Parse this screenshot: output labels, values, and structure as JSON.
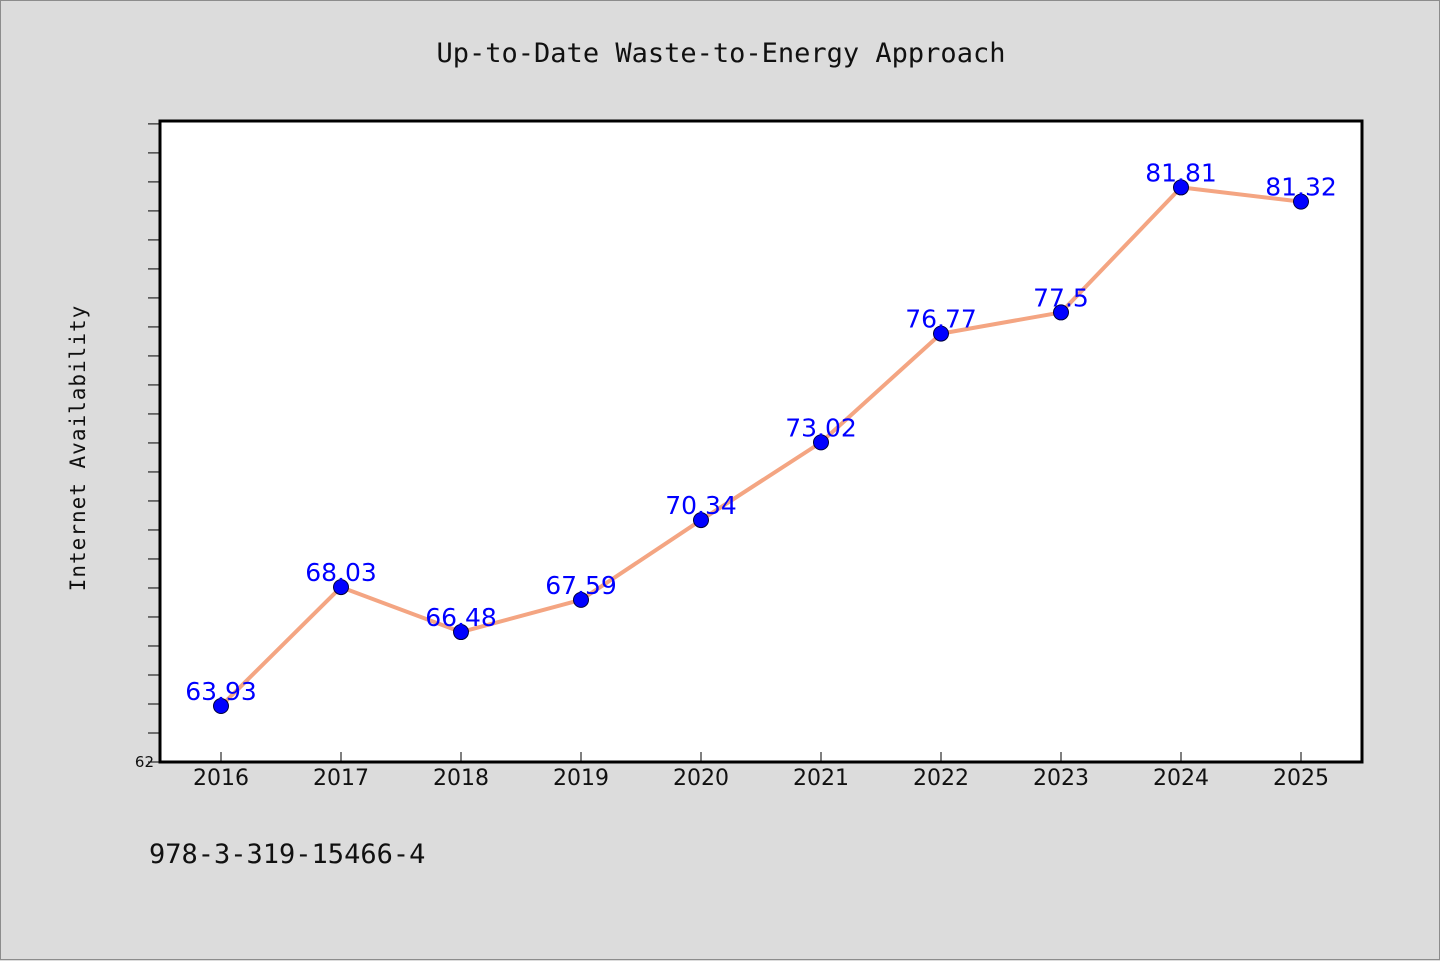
{
  "chart_data": {
    "type": "line",
    "title": "Up-to-Date Waste-to-Energy Approach",
    "xlabel": "",
    "ylabel": "Internet Availability",
    "categories": [
      "2016",
      "2017",
      "2018",
      "2019",
      "2020",
      "2021",
      "2022",
      "2023",
      "2024",
      "2025"
    ],
    "values": [
      63.93,
      68.03,
      66.48,
      67.59,
      70.34,
      73.02,
      76.77,
      77.5,
      81.81,
      81.32
    ],
    "data_labels": [
      "63.93",
      "68.03",
      "66.48",
      "67.59",
      "70.34",
      "73.02",
      "76.77",
      "77.5",
      "81.81",
      "81.32"
    ],
    "ylim": [
      62,
      84.1
    ],
    "ytick_labels": [
      "62"
    ],
    "grid": false,
    "legend": "none",
    "line_color": "#f4a582",
    "marker_color": "#0000ff",
    "label_color": "#0000ff"
  },
  "footer": {
    "isbn": "978-3-319-15466-4"
  }
}
